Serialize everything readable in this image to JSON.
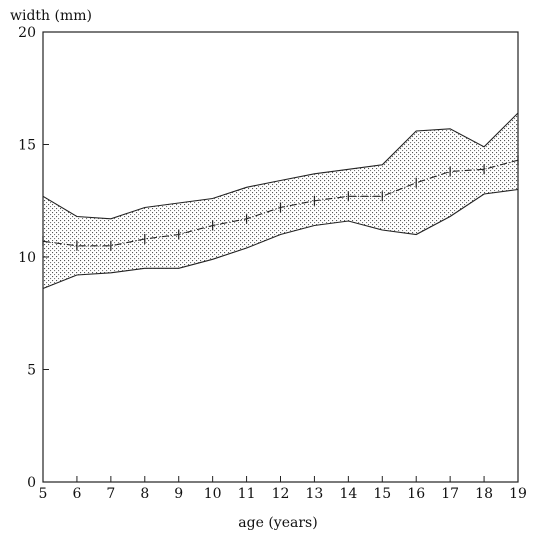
{
  "chart_data": {
    "type": "line",
    "title": "",
    "ylabel": "width (mm)",
    "xlabel": "age (years)",
    "xlim": [
      5,
      19
    ],
    "ylim": [
      0,
      20
    ],
    "x_ticks": [
      5,
      6,
      7,
      8,
      9,
      10,
      11,
      12,
      13,
      14,
      15,
      16,
      17,
      18,
      19
    ],
    "x_tick_labels": [
      "5",
      "6",
      "7",
      "8",
      "9",
      "10",
      "11",
      "12",
      "13",
      "14",
      "15",
      "16",
      "17",
      "18",
      "19"
    ],
    "y_ticks": [
      0,
      5,
      10,
      15,
      20
    ],
    "y_tick_labels": [
      "0",
      "5",
      "10",
      "15",
      "20"
    ],
    "grid": false,
    "x": [
      5,
      6,
      7,
      8,
      9,
      10,
      11,
      12,
      13,
      14,
      15,
      16,
      17,
      18,
      19
    ],
    "series": [
      {
        "role": "upper",
        "values": [
          12.7,
          11.8,
          11.7,
          12.2,
          12.4,
          12.6,
          13.1,
          13.4,
          13.7,
          13.9,
          14.1,
          15.6,
          15.7,
          14.9,
          16.4
        ]
      },
      {
        "role": "mean",
        "values": [
          10.7,
          10.5,
          10.5,
          10.8,
          11.0,
          11.4,
          11.7,
          12.2,
          12.5,
          12.7,
          12.7,
          13.3,
          13.8,
          13.9,
          14.3
        ]
      },
      {
        "role": "lower",
        "values": [
          8.6,
          9.2,
          9.3,
          9.5,
          9.5,
          9.9,
          10.4,
          11.0,
          11.4,
          11.6,
          11.2,
          11.0,
          11.8,
          12.8,
          13.0
        ]
      }
    ],
    "band": "shaded (dotted) area between upper and lower"
  }
}
